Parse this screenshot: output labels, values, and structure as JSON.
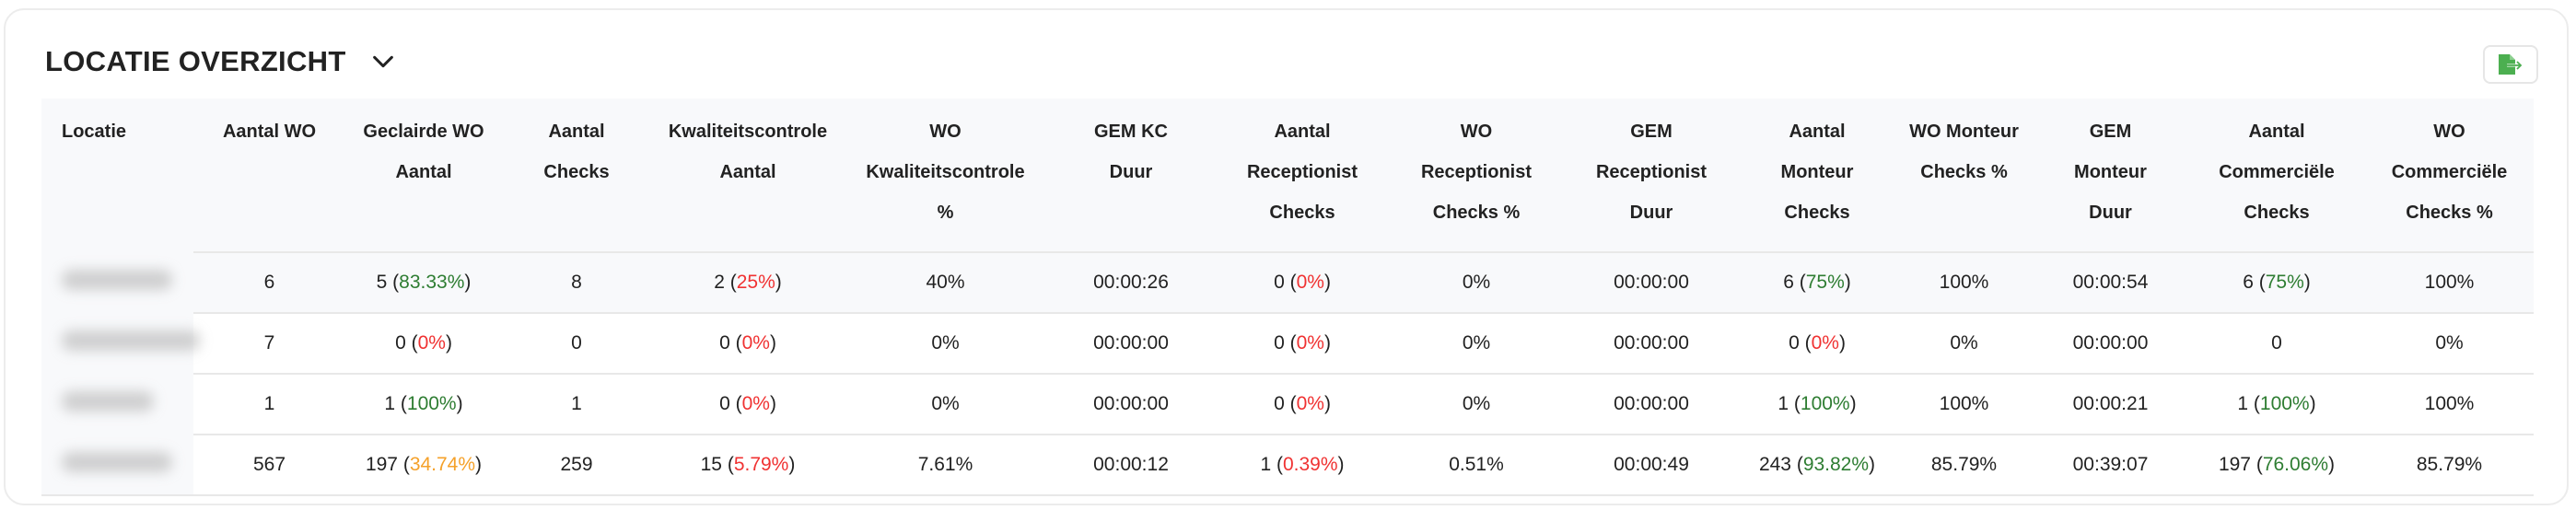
{
  "header": {
    "title": "LOCATIE OVERZICHT",
    "collapse_icon": "chevron-down-icon",
    "export_icon": "file-export-icon",
    "export_color": "#4caf50"
  },
  "colors": {
    "good": "#2e7d32",
    "bad": "#f03232",
    "warning": "#f5a12a"
  },
  "table": {
    "columns": [
      [
        "Locatie"
      ],
      [
        "Aantal WO"
      ],
      [
        "Geclairde WO",
        "Aantal"
      ],
      [
        "Aantal",
        "Checks"
      ],
      [
        "Kwaliteitscontrole",
        "Aantal"
      ],
      [
        "WO",
        "Kwaliteitscontrole",
        "%"
      ],
      [
        "GEM KC",
        "Duur"
      ],
      [
        "Aantal",
        "Receptionist",
        "Checks"
      ],
      [
        "WO",
        "Receptionist",
        "Checks %"
      ],
      [
        "GEM",
        "Receptionist",
        "Duur"
      ],
      [
        "Aantal",
        "Monteur",
        "Checks"
      ],
      [
        "WO Monteur",
        "Checks %"
      ],
      [
        "GEM",
        "Monteur",
        "Duur"
      ],
      [
        "Aantal",
        "Commerciële",
        "Checks"
      ],
      [
        "WO",
        "Commerciële",
        "Checks %"
      ]
    ],
    "rows": [
      {
        "cells": [
          {
            "v": "6"
          },
          {
            "v": "5",
            "p": "83.33%",
            "c": "g"
          },
          {
            "v": "8"
          },
          {
            "v": "2",
            "p": "25%",
            "c": "r"
          },
          {
            "v": "40%"
          },
          {
            "v": "00:00:26"
          },
          {
            "v": "0",
            "p": "0%",
            "c": "r"
          },
          {
            "v": "0%"
          },
          {
            "v": "00:00:00"
          },
          {
            "v": "6",
            "p": "75%",
            "c": "g"
          },
          {
            "v": "100%"
          },
          {
            "v": "00:00:54"
          },
          {
            "v": "6",
            "p": "75%",
            "c": "g"
          },
          {
            "v": "100%"
          }
        ]
      },
      {
        "cells": [
          {
            "v": "7"
          },
          {
            "v": "0",
            "p": "0%",
            "c": "r"
          },
          {
            "v": "0"
          },
          {
            "v": "0",
            "p": "0%",
            "c": "r"
          },
          {
            "v": "0%"
          },
          {
            "v": "00:00:00"
          },
          {
            "v": "0",
            "p": "0%",
            "c": "r"
          },
          {
            "v": "0%"
          },
          {
            "v": "00:00:00"
          },
          {
            "v": "0",
            "p": "0%",
            "c": "r"
          },
          {
            "v": "0%"
          },
          {
            "v": "00:00:00"
          },
          {
            "v": "0"
          },
          {
            "v": "0%"
          }
        ]
      },
      {
        "cells": [
          {
            "v": "1"
          },
          {
            "v": "1",
            "p": "100%",
            "c": "g"
          },
          {
            "v": "1"
          },
          {
            "v": "0",
            "p": "0%",
            "c": "r"
          },
          {
            "v": "0%"
          },
          {
            "v": "00:00:00"
          },
          {
            "v": "0",
            "p": "0%",
            "c": "r"
          },
          {
            "v": "0%"
          },
          {
            "v": "00:00:00"
          },
          {
            "v": "1",
            "p": "100%",
            "c": "g"
          },
          {
            "v": "100%"
          },
          {
            "v": "00:00:21"
          },
          {
            "v": "1",
            "p": "100%",
            "c": "g"
          },
          {
            "v": "100%"
          }
        ]
      },
      {
        "cells": [
          {
            "v": "567"
          },
          {
            "v": "197",
            "p": "34.74%",
            "c": "o"
          },
          {
            "v": "259"
          },
          {
            "v": "15",
            "p": "5.79%",
            "c": "r"
          },
          {
            "v": "7.61%"
          },
          {
            "v": "00:00:12"
          },
          {
            "v": "1",
            "p": "0.39%",
            "c": "r"
          },
          {
            "v": "0.51%"
          },
          {
            "v": "00:00:49"
          },
          {
            "v": "243",
            "p": "93.82%",
            "c": "g"
          },
          {
            "v": "85.79%"
          },
          {
            "v": "00:39:07"
          },
          {
            "v": "197",
            "p": "76.06%",
            "c": "g"
          },
          {
            "v": "85.79%"
          }
        ]
      }
    ]
  }
}
